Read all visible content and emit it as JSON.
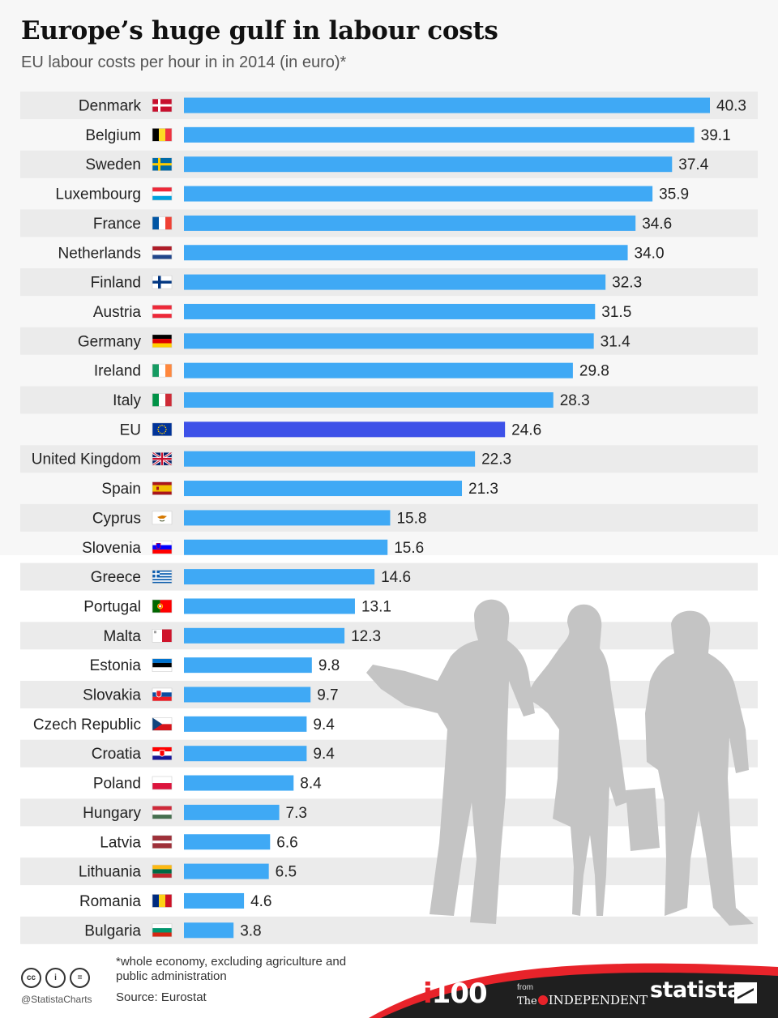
{
  "header": {
    "title": "Europe’s huge gulf in labour costs",
    "subtitle": "EU labour costs per hour in in 2014 (in euro)*"
  },
  "chart_data": {
    "type": "bar",
    "orientation": "horizontal",
    "categories": [
      "Denmark",
      "Belgium",
      "Sweden",
      "Luxembourg",
      "France",
      "Netherlands",
      "Finland",
      "Austria",
      "Germany",
      "Ireland",
      "Italy",
      "EU",
      "United Kingdom",
      "Spain",
      "Cyprus",
      "Slovenia",
      "Greece",
      "Portugal",
      "Malta",
      "Estonia",
      "Slovakia",
      "Czech Republic",
      "Croatia",
      "Poland",
      "Hungary",
      "Latvia",
      "Lithuania",
      "Romania",
      "Bulgaria"
    ],
    "values": [
      40.3,
      39.1,
      37.4,
      35.9,
      34.6,
      34.0,
      32.3,
      31.5,
      31.4,
      29.8,
      28.3,
      24.6,
      22.3,
      21.3,
      15.8,
      15.6,
      14.6,
      13.1,
      12.3,
      9.8,
      9.7,
      9.4,
      9.4,
      8.4,
      7.3,
      6.6,
      6.5,
      4.6,
      3.8
    ],
    "value_labels": [
      "40.3",
      "39.1",
      "37.4",
      "35.9",
      "34.6",
      "34.0",
      "32.3",
      "31.5",
      "31.4",
      "29.8",
      "28.3",
      "24.6",
      "22.3",
      "21.3",
      "15.8",
      "15.6",
      "14.6",
      "13.1",
      "12.3",
      "9.8",
      "9.7",
      "9.4",
      "9.4",
      "8.4",
      "7.3",
      "6.6",
      "6.5",
      "4.6",
      "3.8"
    ],
    "highlight_category": "EU",
    "xlim": [
      0,
      40.3
    ],
    "grid": false,
    "legend": "none"
  },
  "colors": {
    "bar": "#3fa9f5",
    "bar_highlight": "#3d51e8",
    "row_band": "#ebebeb",
    "footer": "#1f1f1f",
    "footer_accent": "#e8232a"
  },
  "flags": [
    "flag-denmark-icon",
    "flag-belgium-icon",
    "flag-sweden-icon",
    "flag-luxembourg-icon",
    "flag-france-icon",
    "flag-netherlands-icon",
    "flag-finland-icon",
    "flag-austria-icon",
    "flag-germany-icon",
    "flag-ireland-icon",
    "flag-italy-icon",
    "flag-eu-icon",
    "flag-united-kingdom-icon",
    "flag-spain-icon",
    "flag-cyprus-icon",
    "flag-slovenia-icon",
    "flag-greece-icon",
    "flag-portugal-icon",
    "flag-malta-icon",
    "flag-estonia-icon",
    "flag-slovakia-icon",
    "flag-czech-republic-icon",
    "flag-croatia-icon",
    "flag-poland-icon",
    "flag-hungary-icon",
    "flag-latvia-icon",
    "flag-lithuania-icon",
    "flag-romania-icon",
    "flag-bulgaria-icon"
  ],
  "footer": {
    "footnote": "*whole economy, excluding agriculture and public administration",
    "source": "Source: Eurostat",
    "handle": "@StatistaCharts",
    "license_icons": [
      "cc",
      "by",
      "nd"
    ],
    "license_icon_labels": [
      "cc",
      "i",
      "="
    ],
    "i100_prefix": "i",
    "i100_suffix": "100",
    "from": "from",
    "the": "The",
    "independent": "INDEPENDENT",
    "statista": "statista"
  }
}
